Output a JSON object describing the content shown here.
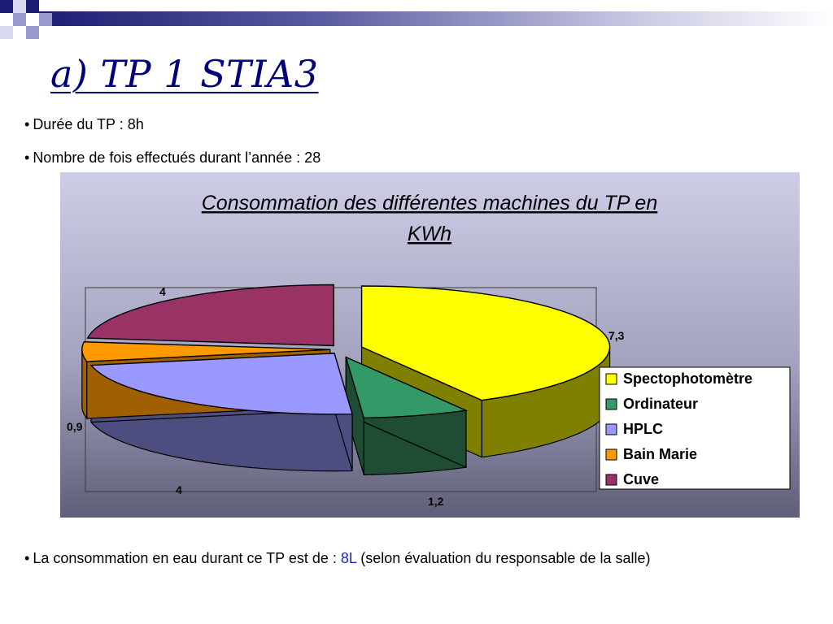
{
  "slide": {
    "title": "a) TP 1 STIA3",
    "bullets": [
      "Durée du TP : 8h",
      "Nombre de fois effectués durant l’année : 28"
    ],
    "bullet_symbol": "•",
    "footer": {
      "prefix": "La consommation en eau durant ce TP est de : ",
      "value": "8L",
      "suffix": " (selon évaluation du responsable de la salle)"
    },
    "accent_color": "#1f1fd0",
    "title_color": "#00007a"
  },
  "chart_data": {
    "type": "pie",
    "title": "Consommation des différentes machines du TP en KWh",
    "title_lines": [
      "Consommation des différentes machines du TP en ",
      "KWh"
    ],
    "categories": [
      "Spectophotomètre",
      "Ordinateur",
      "HPLC",
      "Bain Marie",
      "Cuve"
    ],
    "values": [
      7.3,
      1.2,
      4,
      0.9,
      4
    ],
    "value_labels": [
      "7,3",
      "1,2",
      "4",
      "0,9",
      "4"
    ],
    "colors": [
      "#ffff00",
      "#339966",
      "#9999ff",
      "#ff9900",
      "#993366"
    ],
    "side_colors": [
      "#808000",
      "#1e4d33",
      "#4d4d80",
      "#a05f00",
      "#5c1f3d"
    ],
    "legend_position": "right",
    "style": "3d-exploded"
  }
}
